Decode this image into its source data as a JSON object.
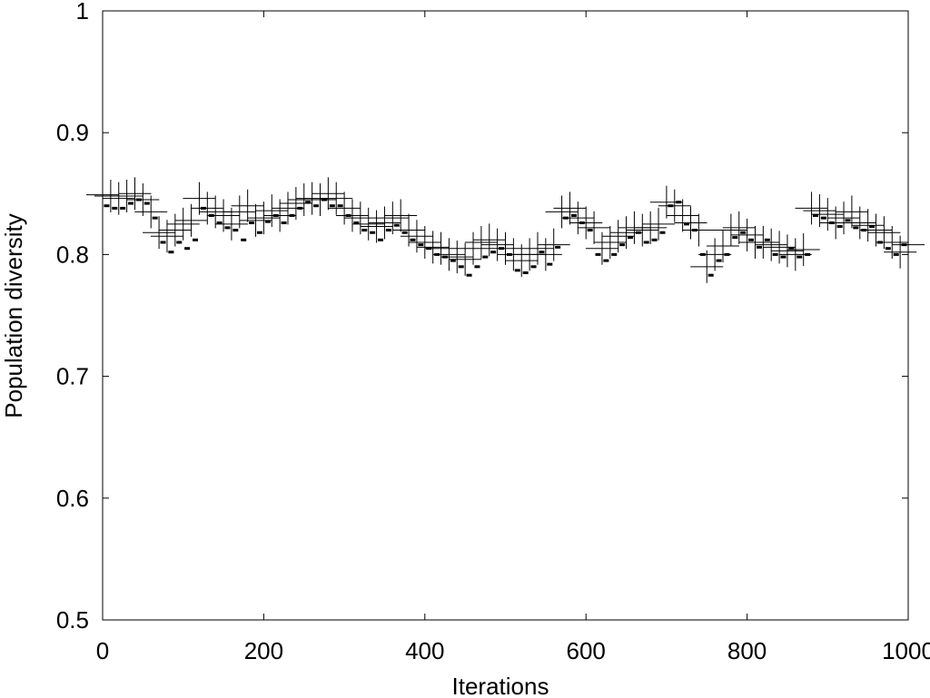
{
  "chart_data": {
    "type": "scatter",
    "title": "",
    "xlabel": "Iterations",
    "ylabel": "Population diversity",
    "xlim": [
      0,
      1000
    ],
    "ylim": [
      0.5,
      1
    ],
    "xticks": [
      0,
      200,
      400,
      600,
      800,
      1000
    ],
    "xtick_labels": [
      "0",
      "200",
      "400",
      "600",
      "800",
      "1000"
    ],
    "yticks": [
      0.5,
      0.6,
      0.7,
      0.8,
      0.9,
      1.0
    ],
    "ytick_labels": [
      "0.5",
      "0.6",
      "0.7",
      "0.8",
      "0.9",
      "1"
    ],
    "grid": false,
    "legend": "none",
    "series": [
      {
        "marker": "plus",
        "color": "#000000",
        "x": [
          0,
          10,
          20,
          30,
          40,
          50,
          60,
          70,
          80,
          90,
          100,
          110,
          120,
          130,
          140,
          150,
          160,
          170,
          180,
          190,
          200,
          210,
          220,
          230,
          240,
          250,
          260,
          270,
          280,
          290,
          300,
          310,
          320,
          330,
          340,
          350,
          360,
          370,
          380,
          390,
          400,
          410,
          420,
          430,
          440,
          450,
          460,
          470,
          480,
          490,
          500,
          510,
          520,
          530,
          540,
          550,
          560,
          570,
          580,
          590,
          600,
          610,
          620,
          630,
          640,
          650,
          660,
          670,
          680,
          690,
          700,
          710,
          720,
          730,
          740,
          750,
          760,
          770,
          780,
          790,
          800,
          810,
          820,
          830,
          840,
          850,
          860,
          870,
          880,
          890,
          900,
          910,
          920,
          930,
          940,
          950,
          960,
          970,
          980,
          990,
          1000
        ],
        "y": [
          0.849,
          0.848,
          0.846,
          0.848,
          0.85,
          0.845,
          0.835,
          0.818,
          0.815,
          0.82,
          0.825,
          0.828,
          0.846,
          0.838,
          0.835,
          0.832,
          0.825,
          0.835,
          0.84,
          0.828,
          0.83,
          0.836,
          0.832,
          0.838,
          0.842,
          0.845,
          0.846,
          0.845,
          0.85,
          0.846,
          0.838,
          0.832,
          0.83,
          0.825,
          0.823,
          0.826,
          0.83,
          0.832,
          0.82,
          0.815,
          0.81,
          0.806,
          0.805,
          0.8,
          0.798,
          0.796,
          0.805,
          0.81,
          0.812,
          0.808,
          0.805,
          0.8,
          0.795,
          0.8,
          0.805,
          0.8,
          0.808,
          0.835,
          0.838,
          0.83,
          0.826,
          0.822,
          0.805,
          0.81,
          0.815,
          0.818,
          0.822,
          0.82,
          0.822,
          0.825,
          0.843,
          0.84,
          0.832,
          0.826,
          0.82,
          0.79,
          0.8,
          0.807,
          0.82,
          0.822,
          0.816,
          0.81,
          0.81,
          0.808,
          0.806,
          0.803,
          0.8,
          0.804,
          0.838,
          0.836,
          0.833,
          0.826,
          0.83,
          0.835,
          0.826,
          0.824,
          0.82,
          0.818,
          0.81,
          0.802,
          0.808
        ]
      },
      {
        "marker": "dash",
        "color": "#000000",
        "x": [
          5,
          15,
          25,
          35,
          45,
          55,
          65,
          75,
          85,
          95,
          105,
          115,
          125,
          135,
          145,
          155,
          165,
          175,
          185,
          195,
          205,
          215,
          225,
          235,
          245,
          255,
          265,
          275,
          285,
          295,
          305,
          315,
          325,
          335,
          345,
          355,
          365,
          375,
          385,
          395,
          405,
          415,
          425,
          435,
          445,
          455,
          465,
          475,
          485,
          495,
          505,
          515,
          525,
          535,
          545,
          555,
          565,
          575,
          585,
          595,
          605,
          615,
          625,
          635,
          645,
          655,
          665,
          675,
          685,
          695,
          705,
          715,
          725,
          735,
          745,
          755,
          765,
          775,
          785,
          795,
          805,
          815,
          825,
          835,
          845,
          855,
          865,
          875,
          885,
          895,
          905,
          915,
          925,
          935,
          945,
          955,
          965,
          975,
          985,
          995
        ],
        "y": [
          0.84,
          0.838,
          0.838,
          0.842,
          0.845,
          0.842,
          0.83,
          0.81,
          0.802,
          0.81,
          0.805,
          0.812,
          0.838,
          0.832,
          0.826,
          0.822,
          0.82,
          0.812,
          0.826,
          0.818,
          0.827,
          0.832,
          0.826,
          0.832,
          0.838,
          0.843,
          0.84,
          0.845,
          0.84,
          0.84,
          0.832,
          0.826,
          0.82,
          0.818,
          0.812,
          0.82,
          0.824,
          0.818,
          0.812,
          0.808,
          0.805,
          0.8,
          0.798,
          0.795,
          0.79,
          0.783,
          0.79,
          0.798,
          0.802,
          0.805,
          0.8,
          0.787,
          0.785,
          0.79,
          0.802,
          0.792,
          0.806,
          0.83,
          0.832,
          0.826,
          0.82,
          0.8,
          0.795,
          0.8,
          0.808,
          0.814,
          0.818,
          0.81,
          0.812,
          0.818,
          0.84,
          0.843,
          0.825,
          0.82,
          0.8,
          0.783,
          0.795,
          0.8,
          0.814,
          0.818,
          0.812,
          0.806,
          0.812,
          0.8,
          0.798,
          0.805,
          0.798,
          0.8,
          0.832,
          0.83,
          0.826,
          0.823,
          0.828,
          0.822,
          0.82,
          0.823,
          0.81,
          0.805,
          0.8,
          0.808
        ]
      }
    ]
  }
}
